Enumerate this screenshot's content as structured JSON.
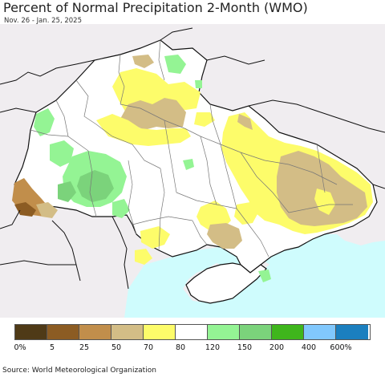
{
  "title": "Percent of Normal Precipitation 2-Month (WMO)",
  "subtitle": "Nov. 26 - Jan. 25, 2025",
  "source": "Source: World Meteorological Organization",
  "legend": {
    "colors": [
      "#4f3a17",
      "#8c5c23",
      "#c18e4b",
      "#d3bd86",
      "#fdfc6a",
      "#ffffff",
      "#94f494",
      "#7bd37b",
      "#3fb61c",
      "#81c8fd",
      "#1b7fbf"
    ],
    "labels": [
      "0%",
      "5",
      "25",
      "50",
      "70",
      "80",
      "120",
      "150",
      "200",
      "400",
      "600%"
    ]
  },
  "map": {
    "sea_color": "#cffcfd",
    "outside_color": "#f0edf0",
    "country_fill": "#ffffff",
    "border_color": "#111111",
    "oblast_border_color": "#777777"
  }
}
